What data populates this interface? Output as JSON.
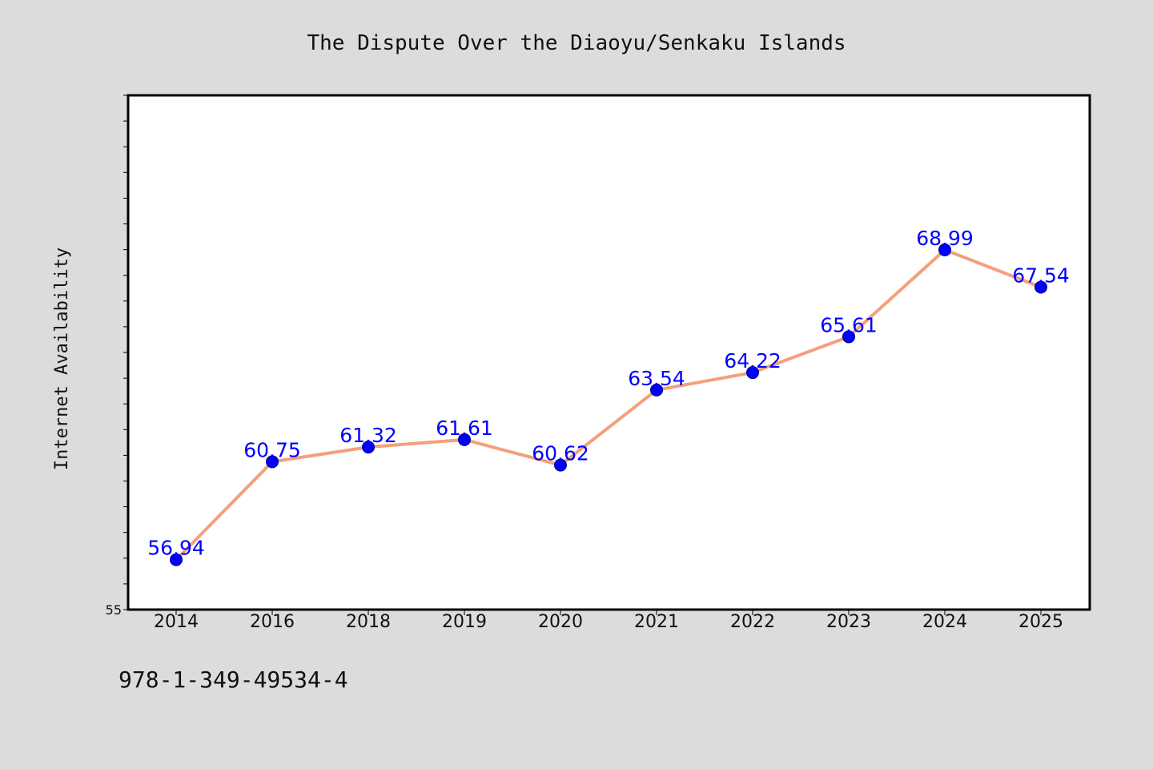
{
  "chart_data": {
    "type": "line",
    "title": "The Dispute Over the Diaoyu/Senkaku Islands",
    "xlabel": "",
    "ylabel": "Internet Availability",
    "categories": [
      "2014",
      "2016",
      "2018",
      "2019",
      "2020",
      "2021",
      "2022",
      "2023",
      "2024",
      "2025"
    ],
    "series": [
      {
        "values": [
          56.94,
          60.75,
          61.32,
          61.61,
          60.62,
          63.54,
          64.22,
          65.61,
          68.99,
          67.54
        ],
        "labels": [
          "56.94",
          "60.75",
          "61.32",
          "61.61",
          "60.62",
          "63.54",
          "64.22",
          "65.61",
          "68.99",
          "67.54"
        ]
      }
    ],
    "ylim": [
      55,
      75
    ],
    "y_tick_labels": [
      "55"
    ],
    "y_minor_tick_step": 1,
    "grid": false,
    "legend": "none",
    "colors": {
      "line": "#f4a07c",
      "marker": "#0000ff",
      "data_label": "#0000ff",
      "background": "#dcdcdc",
      "plot_background": "#ffffff"
    }
  },
  "footer": {
    "isbn": "978-1-349-49534-4"
  }
}
